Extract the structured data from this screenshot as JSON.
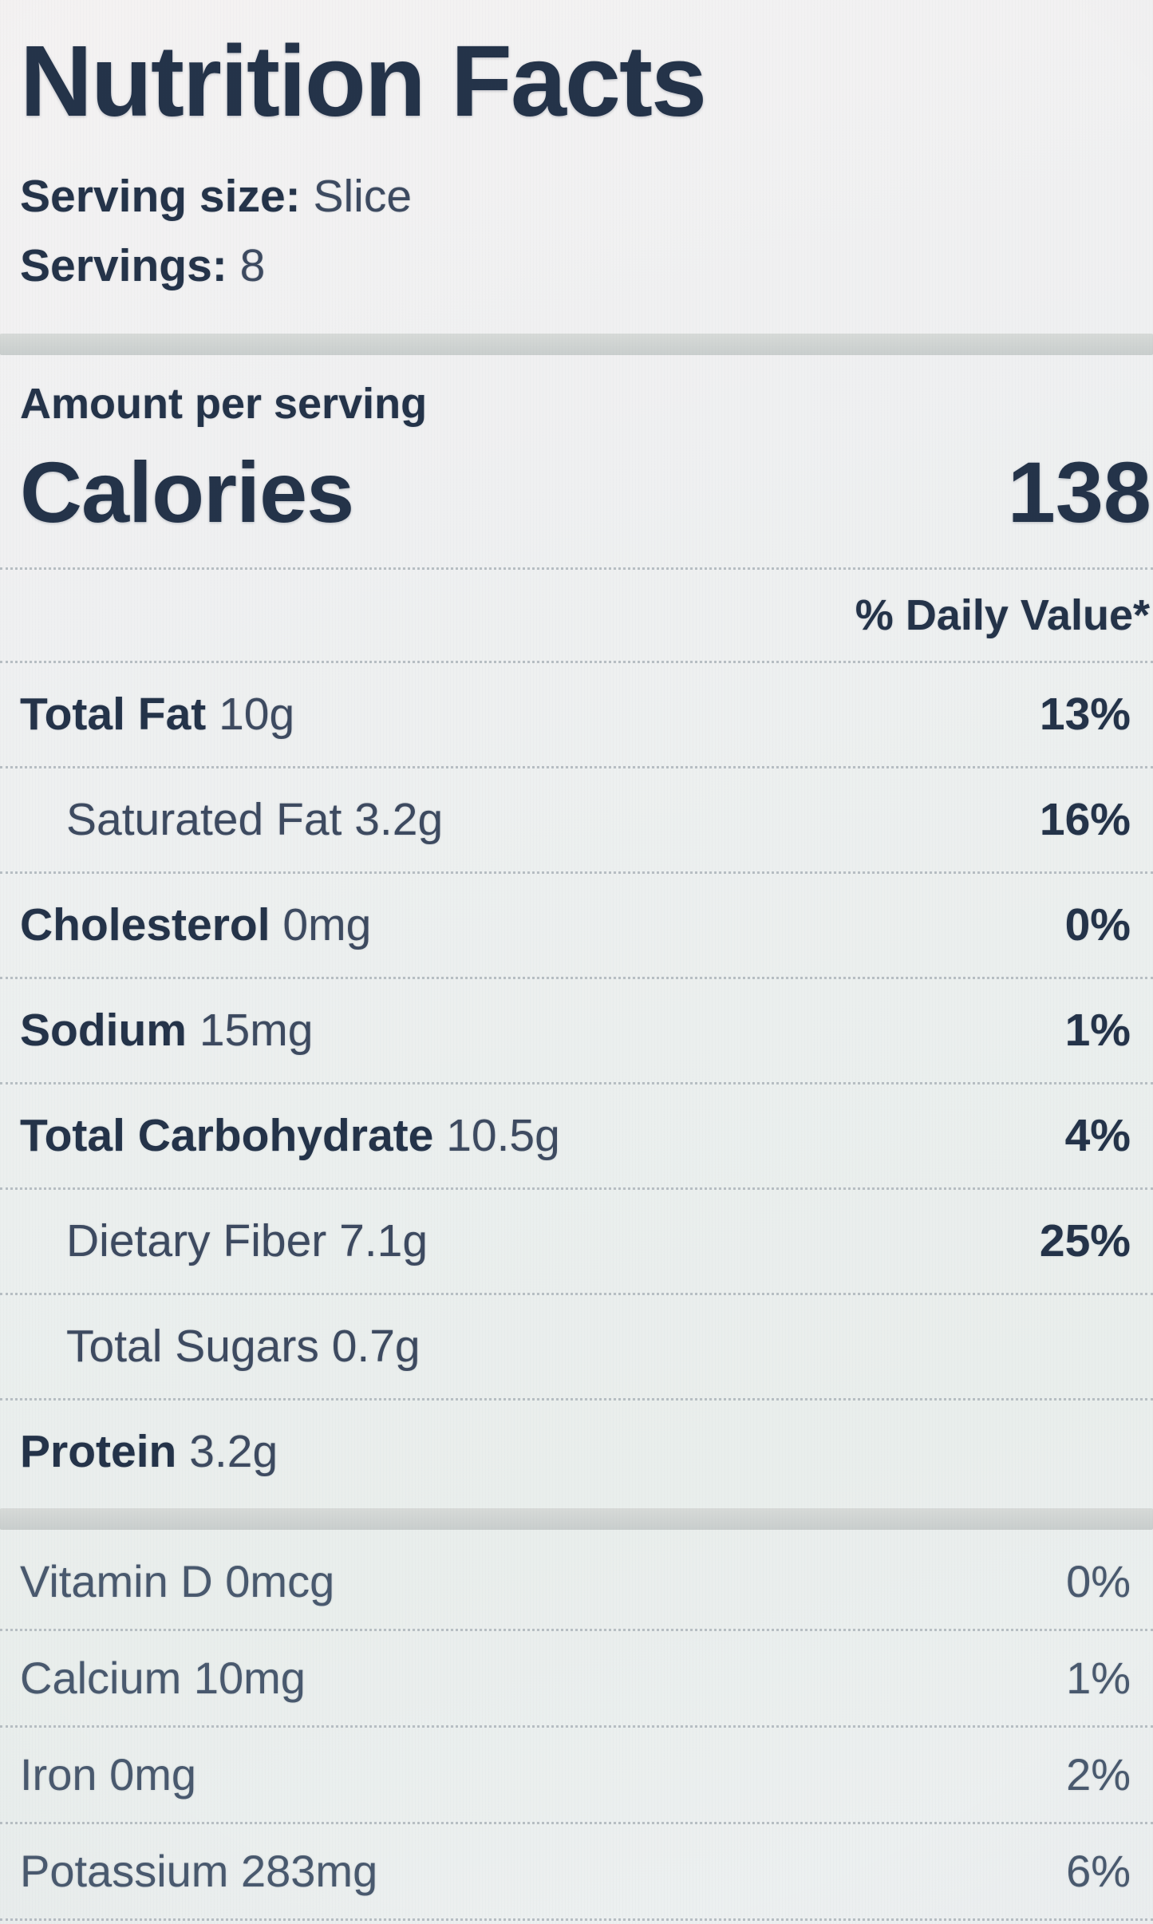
{
  "label": {
    "title": "Nutrition Facts",
    "serving_size_label": "Serving size:",
    "serving_size_value": "Slice",
    "servings_label": "Servings:",
    "servings_value": "8",
    "amount_per_serving": "Amount per serving",
    "calories_label": "Calories",
    "calories_value": "138",
    "daily_value_header": "% Daily Value*",
    "nutrients": [
      {
        "name": "Total Fat",
        "amount": "10g",
        "dv": "13%",
        "bold": true,
        "indent": false
      },
      {
        "name": "Saturated Fat",
        "amount": "3.2g",
        "dv": "16%",
        "bold": false,
        "indent": true
      },
      {
        "name": "Cholesterol",
        "amount": "0mg",
        "dv": "0%",
        "bold": true,
        "indent": false
      },
      {
        "name": "Sodium",
        "amount": "15mg",
        "dv": "1%",
        "bold": true,
        "indent": false
      },
      {
        "name": "Total Carbohydrate",
        "amount": "10.5g",
        "dv": "4%",
        "bold": true,
        "indent": false
      },
      {
        "name": "Dietary Fiber",
        "amount": "7.1g",
        "dv": "25%",
        "bold": false,
        "indent": true
      },
      {
        "name": "Total Sugars",
        "amount": "0.7g",
        "dv": "",
        "bold": false,
        "indent": true
      },
      {
        "name": "Protein",
        "amount": "3.2g",
        "dv": "",
        "bold": true,
        "indent": false
      }
    ],
    "micronutrients": [
      {
        "name": "Vitamin D",
        "amount": "0mcg",
        "dv": "0%"
      },
      {
        "name": "Calcium",
        "amount": "10mg",
        "dv": "1%"
      },
      {
        "name": "Iron",
        "amount": "0mg",
        "dv": "2%"
      },
      {
        "name": "Potassium",
        "amount": "283mg",
        "dv": "6%"
      }
    ],
    "colors": {
      "text_dark": "#243349",
      "text_regular": "#3d4a60",
      "text_muted": "#49596e",
      "divider_thick": "#ced2d0",
      "divider_dotted": "#b7bec3",
      "bg_top": "#f4f2f2",
      "bg_bottom": "#edf0f1"
    }
  }
}
